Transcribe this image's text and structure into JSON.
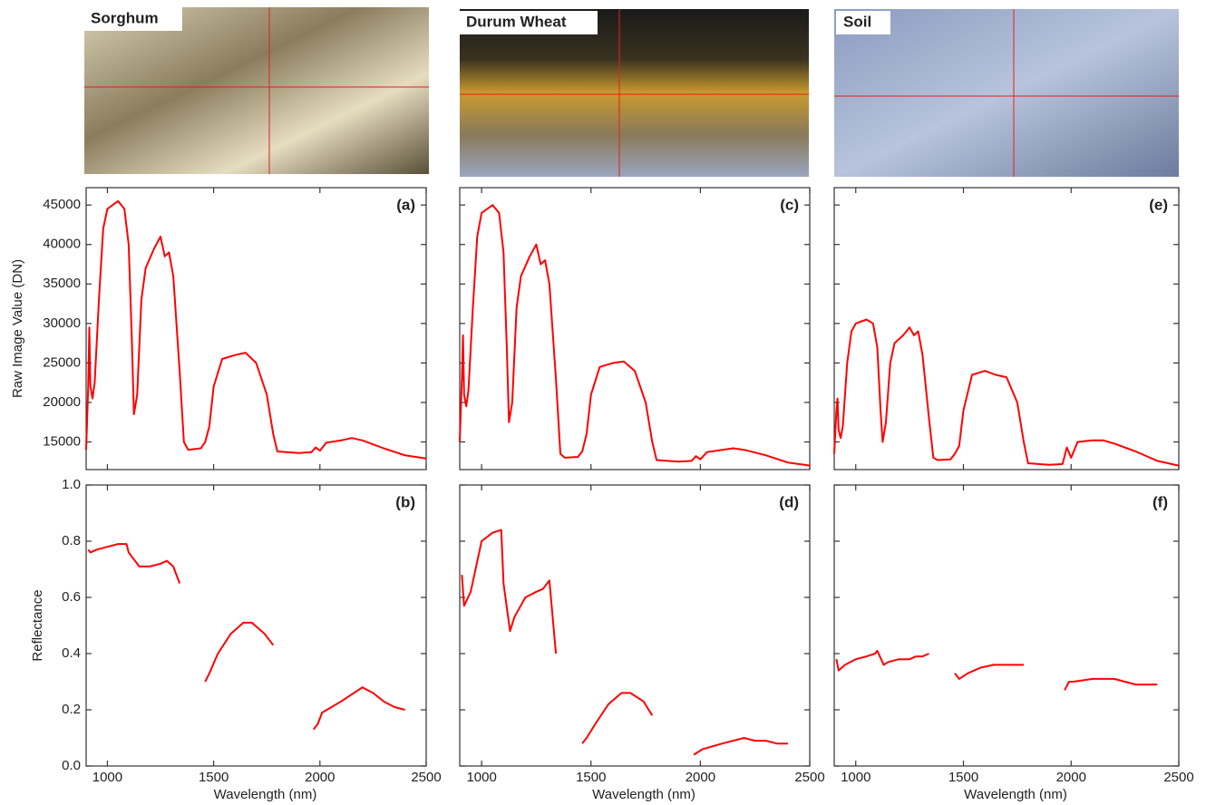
{
  "photos": [
    {
      "label": "Sorghum"
    },
    {
      "label": "Durum Wheat"
    },
    {
      "label": "Soil"
    }
  ],
  "chart_data": [
    {
      "type": "line",
      "annotation": "(a)",
      "ylabel": "Raw Image Value (DN)",
      "color": "#ff0000",
      "x": [
        900,
        910,
        915,
        920,
        930,
        940,
        960,
        980,
        1000,
        1050,
        1080,
        1100,
        1115,
        1125,
        1140,
        1160,
        1180,
        1220,
        1250,
        1270,
        1290,
        1310,
        1340,
        1360,
        1380,
        1440,
        1460,
        1480,
        1500,
        1540,
        1600,
        1650,
        1700,
        1750,
        1780,
        1800,
        1900,
        1960,
        1980,
        2000,
        2030,
        2100,
        2150,
        2200,
        2300,
        2400,
        2500
      ],
      "values": [
        14000,
        22000,
        29500,
        22000,
        20500,
        22500,
        33000,
        42000,
        44500,
        45500,
        44500,
        40000,
        28000,
        18500,
        21000,
        33000,
        37000,
        39500,
        41000,
        38500,
        39000,
        36000,
        24000,
        15000,
        14000,
        14200,
        15000,
        17000,
        22000,
        25500,
        26000,
        26300,
        25000,
        21000,
        16000,
        13800,
        13600,
        13700,
        14300,
        13900,
        14900,
        15200,
        15500,
        15200,
        14200,
        13300,
        12900
      ],
      "xlim": [
        900,
        2500
      ],
      "xticks": [
        1000,
        1500,
        2000,
        2500
      ],
      "xtick_labels": false,
      "ylim": [
        11500,
        47200
      ],
      "yticks": [
        15000,
        20000,
        25000,
        30000,
        35000,
        40000,
        45000
      ],
      "ytick_labels": true
    },
    {
      "type": "line",
      "annotation": "(b)",
      "ylabel": "Reflectance",
      "xlabel": "Wavelength (nm)",
      "color": "#ff0000",
      "x": [
        910,
        920,
        950,
        1000,
        1050,
        1090,
        1100,
        1130,
        1150,
        1200,
        1250,
        1280,
        1310,
        1340,
        1400,
        1460,
        1480,
        1520,
        1580,
        1640,
        1680,
        1740,
        1780,
        1880,
        1970,
        1990,
        2010,
        2100,
        2200,
        2250,
        2300,
        2350,
        2400
      ],
      "values": [
        0.77,
        0.76,
        0.77,
        0.78,
        0.79,
        0.79,
        0.76,
        0.73,
        0.71,
        0.71,
        0.72,
        0.73,
        0.71,
        0.65,
        null,
        0.3,
        0.33,
        0.4,
        0.47,
        0.51,
        0.51,
        0.47,
        0.43,
        null,
        0.13,
        0.15,
        0.19,
        0.23,
        0.28,
        0.26,
        0.23,
        0.21,
        0.2
      ],
      "xlim": [
        900,
        2500
      ],
      "xticks": [
        1000,
        1500,
        2000,
        2500
      ],
      "xtick_labels": true,
      "ylim": [
        0,
        1
      ],
      "yticks": [
        {
          "value": 0,
          "label": "0.0"
        },
        0.2,
        0.4,
        0.6,
        0.8,
        {
          "value": 1,
          "label": "1.0"
        }
      ],
      "ytick_labels": true
    },
    {
      "type": "line",
      "annotation": "(c)",
      "color": "#ff0000",
      "x": [
        900,
        910,
        915,
        920,
        930,
        940,
        960,
        980,
        1000,
        1050,
        1080,
        1100,
        1115,
        1125,
        1140,
        1160,
        1180,
        1220,
        1250,
        1270,
        1290,
        1310,
        1340,
        1360,
        1380,
        1440,
        1460,
        1480,
        1500,
        1540,
        1600,
        1650,
        1700,
        1750,
        1780,
        1800,
        1900,
        1960,
        1980,
        2000,
        2030,
        2100,
        2150,
        2200,
        2300,
        2400,
        2500
      ],
      "values": [
        15000,
        23000,
        28500,
        21000,
        19500,
        21500,
        32000,
        41000,
        44000,
        45000,
        44000,
        39000,
        27000,
        17500,
        20000,
        32000,
        36000,
        38500,
        40000,
        37500,
        38000,
        35000,
        23000,
        13500,
        13000,
        13100,
        13800,
        16000,
        21000,
        24500,
        25000,
        25200,
        24000,
        20000,
        15000,
        12700,
        12500,
        12600,
        13200,
        12800,
        13700,
        14000,
        14200,
        14000,
        13300,
        12400,
        12000
      ],
      "xlim": [
        900,
        2500
      ],
      "xticks": [
        1000,
        1500,
        2000,
        2500
      ],
      "xtick_labels": false,
      "ylim": [
        11500,
        47200
      ],
      "yticks": [
        15000,
        20000,
        25000,
        30000,
        35000,
        40000,
        45000
      ],
      "ytick_labels": false
    },
    {
      "type": "line",
      "annotation": "(d)",
      "xlabel": "Wavelength (nm)",
      "color": "#ff0000",
      "x": [
        910,
        920,
        950,
        1000,
        1050,
        1090,
        1100,
        1130,
        1150,
        1200,
        1250,
        1280,
        1310,
        1340,
        1400,
        1460,
        1480,
        1520,
        1580,
        1640,
        1680,
        1740,
        1780,
        1880,
        1970,
        1990,
        2010,
        2100,
        2200,
        2250,
        2300,
        2350,
        2400
      ],
      "values": [
        0.68,
        0.57,
        0.62,
        0.8,
        0.83,
        0.84,
        0.65,
        0.48,
        0.53,
        0.6,
        0.62,
        0.63,
        0.66,
        0.4,
        null,
        0.08,
        0.1,
        0.15,
        0.22,
        0.26,
        0.26,
        0.23,
        0.18,
        null,
        0.04,
        0.05,
        0.06,
        0.08,
        0.1,
        0.09,
        0.09,
        0.08,
        0.08
      ],
      "xlim": [
        900,
        2500
      ],
      "xticks": [
        1000,
        1500,
        2000,
        2500
      ],
      "xtick_labels": true,
      "ylim": [
        0,
        1
      ],
      "yticks": [
        0,
        0.2,
        0.4,
        0.6,
        0.8,
        1
      ],
      "ytick_labels": false
    },
    {
      "type": "line",
      "annotation": "(e)",
      "color": "#ff0000",
      "x": [
        900,
        910,
        915,
        920,
        930,
        940,
        960,
        980,
        1000,
        1050,
        1080,
        1100,
        1115,
        1125,
        1140,
        1160,
        1180,
        1220,
        1250,
        1270,
        1290,
        1310,
        1340,
        1360,
        1380,
        1440,
        1460,
        1480,
        1500,
        1540,
        1600,
        1650,
        1700,
        1750,
        1780,
        1800,
        1900,
        1960,
        1980,
        2000,
        2030,
        2100,
        2150,
        2200,
        2300,
        2400,
        2500
      ],
      "values": [
        13500,
        19000,
        20500,
        16500,
        15500,
        17000,
        25000,
        29000,
        30000,
        30500,
        30000,
        27000,
        19000,
        15000,
        17500,
        25000,
        27500,
        28500,
        29500,
        28500,
        29000,
        26000,
        18000,
        13000,
        12700,
        12800,
        13500,
        14500,
        19000,
        23500,
        24000,
        23500,
        23200,
        20000,
        15000,
        12300,
        12100,
        12200,
        14300,
        13000,
        15000,
        15200,
        15200,
        14800,
        13800,
        12600,
        12000
      ],
      "xlim": [
        900,
        2500
      ],
      "xticks": [
        1000,
        1500,
        2000,
        2500
      ],
      "xtick_labels": false,
      "ylim": [
        11500,
        47200
      ],
      "yticks": [
        15000,
        20000,
        25000,
        30000,
        35000,
        40000,
        45000
      ],
      "ytick_labels": false
    },
    {
      "type": "line",
      "annotation": "(f)",
      "xlabel": "Wavelength (nm)",
      "color": "#ff0000",
      "x": [
        910,
        920,
        950,
        1000,
        1050,
        1090,
        1100,
        1130,
        1150,
        1200,
        1250,
        1280,
        1310,
        1340,
        1400,
        1460,
        1480,
        1520,
        1580,
        1640,
        1680,
        1740,
        1780,
        1880,
        1970,
        1990,
        2010,
        2100,
        2200,
        2250,
        2300,
        2350,
        2400
      ],
      "values": [
        0.38,
        0.34,
        0.36,
        0.38,
        0.39,
        0.4,
        0.41,
        0.36,
        0.37,
        0.38,
        0.38,
        0.39,
        0.39,
        0.4,
        null,
        0.33,
        0.31,
        0.33,
        0.35,
        0.36,
        0.36,
        0.36,
        0.36,
        null,
        0.27,
        0.3,
        0.3,
        0.31,
        0.31,
        0.3,
        0.29,
        0.29,
        0.29
      ],
      "xlim": [
        900,
        2500
      ],
      "xticks": [
        1000,
        1500,
        2000,
        2500
      ],
      "xtick_labels": true,
      "ylim": [
        0,
        1
      ],
      "yticks": [
        0,
        0.2,
        0.4,
        0.6,
        0.8,
        1
      ],
      "ytick_labels": false
    }
  ]
}
